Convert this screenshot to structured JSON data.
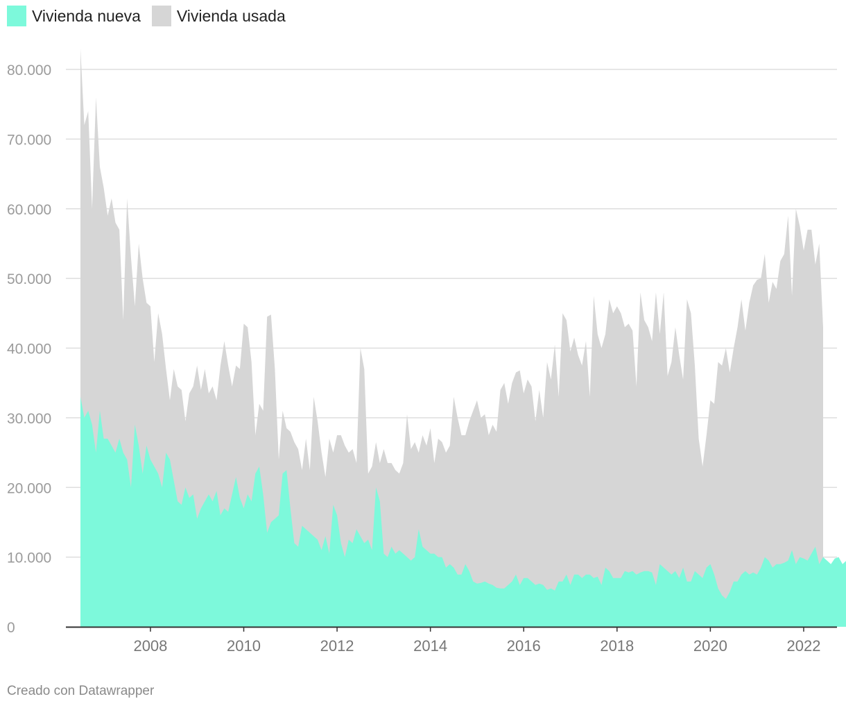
{
  "legend": [
    {
      "label": "Vivienda nueva",
      "color": "#7df9db"
    },
    {
      "label": "Vivienda usada",
      "color": "#d6d6d6"
    }
  ],
  "credit": "Creado con Datawrapper",
  "chart_data": {
    "type": "area",
    "stacked": true,
    "x_start": "2007-01",
    "x_end": "2022-12",
    "frequency": "monthly",
    "ylim": [
      0,
      80000
    ],
    "yticks": [
      0,
      10000,
      20000,
      30000,
      40000,
      50000,
      60000,
      70000,
      80000
    ],
    "ytick_labels": [
      "0",
      "10.000",
      "20.000",
      "30.000",
      "40.000",
      "50.000",
      "60.000",
      "70.000",
      "80.000"
    ],
    "xticks": [
      "2008",
      "2010",
      "2012",
      "2014",
      "2016",
      "2018",
      "2020",
      "2022"
    ],
    "grid": true,
    "legend_position": "top-left",
    "series": [
      {
        "name": "Vivienda nueva",
        "color": "#7df9db",
        "values": [
          33000,
          30000,
          31000,
          29000,
          25000,
          31000,
          27000,
          27000,
          26000,
          25000,
          27000,
          25000,
          24000,
          20000,
          29000,
          26000,
          22000,
          26000,
          24000,
          23000,
          22000,
          20000,
          25000,
          24000,
          21000,
          18000,
          17500,
          20000,
          18500,
          19000,
          15500,
          17000,
          18000,
          19000,
          18000,
          19500,
          16000,
          17000,
          16500,
          19000,
          21500,
          18500,
          17000,
          19000,
          18000,
          22000,
          23000,
          19000,
          13500,
          15000,
          15500,
          16000,
          22000,
          22500,
          17000,
          12000,
          11500,
          14500,
          14000,
          13500,
          13000,
          12500,
          11000,
          13000,
          10500,
          17500,
          16000,
          12000,
          10000,
          12500,
          12000,
          14000,
          13000,
          12000,
          12500,
          11000,
          20000,
          18000,
          10500,
          10000,
          11500,
          10500,
          11000,
          10500,
          10000,
          9500,
          10000,
          14000,
          11500,
          11000,
          10500,
          10500,
          10000,
          10000,
          8500,
          9000,
          8500,
          7500,
          7500,
          9000,
          8000,
          6500,
          6200,
          6300,
          6500,
          6200,
          6000,
          5600,
          5500,
          5500,
          6000,
          6500,
          7500,
          6000,
          7000,
          7000,
          6500,
          6000,
          6200,
          6000,
          5300,
          5500,
          5200,
          6500,
          6500,
          7500,
          6000,
          7500,
          7500,
          7000,
          7500,
          7500,
          7000,
          7200,
          6000,
          8500,
          8000,
          7000,
          7000,
          7000,
          8000,
          7800,
          8000,
          7500,
          7800,
          8000,
          8000,
          7800,
          6000,
          9000,
          8500,
          8000,
          7500,
          8000,
          7000,
          8500,
          6500,
          6500,
          8000,
          7500,
          7000,
          8500,
          9000,
          7500,
          5500,
          4500,
          4000,
          5000,
          6500,
          6500,
          7500,
          8000,
          7500,
          7800,
          7500,
          8500,
          10000,
          9500,
          8500,
          9000,
          9000,
          9200,
          9500,
          11000,
          9000,
          10000,
          9800,
          9500,
          10500,
          11500,
          9000,
          10000,
          9500,
          9000,
          9800,
          10000,
          9000,
          9500
        ]
      },
      {
        "name": "Vivienda usada",
        "color": "#d6d6d6",
        "totals": [
          83000,
          72000,
          74000,
          60000,
          76000,
          66000,
          63000,
          59000,
          61500,
          58000,
          57000,
          44000,
          61500,
          53000,
          46000,
          55000,
          50000,
          46500,
          46000,
          38000,
          45000,
          42000,
          37000,
          32500,
          37000,
          34500,
          34000,
          29500,
          33500,
          34500,
          37500,
          34000,
          37000,
          33500,
          34500,
          32500,
          37500,
          41000,
          37500,
          34500,
          37500,
          37000,
          43500,
          43000,
          38000,
          27500,
          32000,
          31000,
          44500,
          44800,
          37000,
          24000,
          31000,
          28500,
          28000,
          26500,
          25500,
          22500,
          27000,
          22500,
          33000,
          29500,
          25000,
          21500,
          27000,
          25000,
          27500,
          27500,
          26000,
          25000,
          25500,
          23500,
          40000,
          37000,
          22000,
          23000,
          26500,
          23500,
          25500,
          23500,
          23500,
          22500,
          22000,
          23500,
          30500,
          25500,
          26500,
          25000,
          27500,
          26000,
          28500,
          23500,
          27000,
          26500,
          25000,
          26000,
          33000,
          30000,
          27500,
          27500,
          29500,
          31000,
          32500,
          30000,
          30500,
          27500,
          29000,
          28000,
          34000,
          35000,
          32000,
          35000,
          36500,
          36800,
          33500,
          35500,
          34500,
          29500,
          34000,
          30000,
          38000,
          35500,
          40500,
          33000,
          45000,
          44000,
          39500,
          41500,
          39000,
          37500,
          41000,
          33000,
          47500,
          42000,
          40000,
          42000,
          47000,
          45000,
          46000,
          45000,
          43000,
          43500,
          42500,
          34500,
          48000,
          44000,
          43000,
          41000,
          48000,
          42000,
          48000,
          36000,
          38000,
          43000,
          39000,
          35500,
          47000,
          45000,
          37500,
          27000,
          23000,
          27500,
          32500,
          32000,
          38000,
          37500,
          40000,
          36500,
          40000,
          43000,
          47000,
          42500,
          46500,
          49000,
          49800,
          50000,
          53500,
          46500,
          49500,
          48500,
          52500,
          53500,
          59000,
          47500,
          60000,
          57500,
          54000,
          57000,
          57000,
          52000,
          55000,
          43000
        ]
      }
    ]
  }
}
